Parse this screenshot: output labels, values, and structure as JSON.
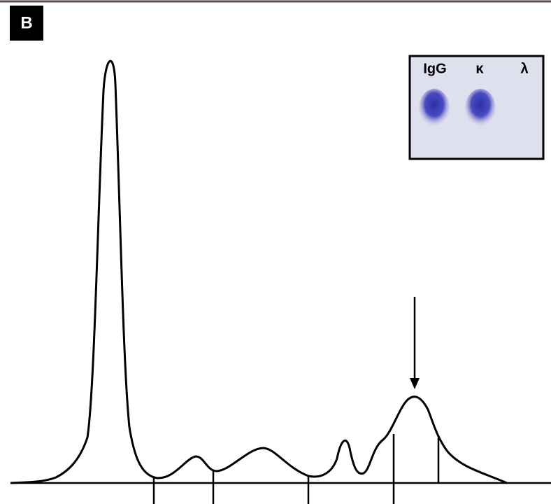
{
  "panel_label": "B",
  "inset": {
    "lanes": [
      "IgG",
      "κ",
      "λ"
    ]
  }
}
